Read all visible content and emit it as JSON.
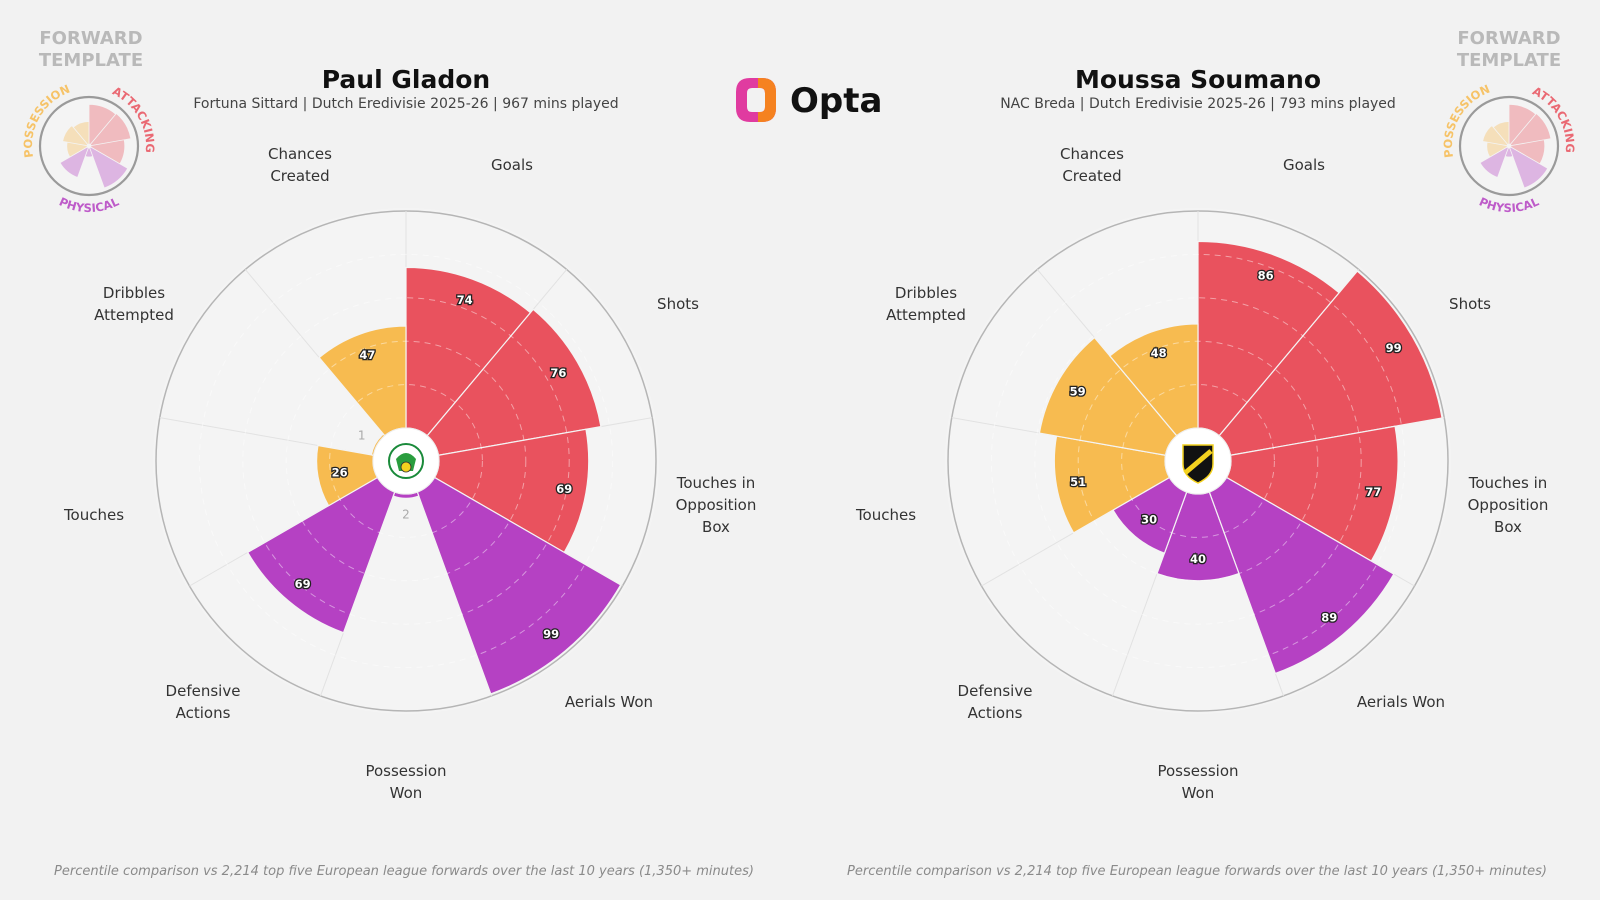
{
  "brand": {
    "name": "Opta"
  },
  "template": {
    "title_line1": "FORWARD",
    "title_line2": "TEMPLATE",
    "categories": [
      {
        "name": "ATTACKING",
        "color": "#e9525e"
      },
      {
        "name": "PHYSICAL",
        "color": "#b541c3"
      },
      {
        "name": "POSSESSION",
        "color": "#f7bb50"
      }
    ]
  },
  "colors": {
    "attacking": "#e9525e",
    "physical": "#b541c3",
    "possession": "#f7bb50"
  },
  "footnote": "Percentile comparison vs 2,214 top five European league forwards over the last 10 years (1,350+ minutes)",
  "chart_data": [
    {
      "type": "polar-bar",
      "title": "Paul Gladon",
      "subtitle": "Fortuna Sittard | Dutch Eredivisie 2025-26 | 967 mins played",
      "rlim": [
        0,
        100
      ],
      "ring_ticks": [
        20,
        40,
        60,
        80,
        100
      ],
      "categories": [
        "Goals",
        "Shots",
        "Touches in Opposition Box",
        "Aerials Won",
        "Possession Won",
        "Defensive Actions",
        "Touches",
        "Dribbles Attempted",
        "Chances Created"
      ],
      "category_group": [
        "attacking",
        "attacking",
        "attacking",
        "physical",
        "physical",
        "physical",
        "possession",
        "possession",
        "possession"
      ],
      "values": [
        74,
        76,
        69,
        99,
        2,
        69,
        26,
        1,
        47
      ],
      "value_labels": [
        "74",
        "76",
        "69",
        "99",
        "2",
        "69",
        "26",
        "1",
        "47"
      ]
    },
    {
      "type": "polar-bar",
      "title": "Moussa Soumano",
      "subtitle": "NAC Breda | Dutch Eredivisie 2025-26 | 793 mins played",
      "rlim": [
        0,
        100
      ],
      "ring_ticks": [
        20,
        40,
        60,
        80,
        100
      ],
      "categories": [
        "Goals",
        "Shots",
        "Touches in Opposition Box",
        "Aerials Won",
        "Possession Won",
        "Defensive Actions",
        "Touches",
        "Dribbles Attempted",
        "Chances Created"
      ],
      "category_group": [
        "attacking",
        "attacking",
        "attacking",
        "physical",
        "physical",
        "physical",
        "possession",
        "possession",
        "possession"
      ],
      "values": [
        86,
        99,
        77,
        89,
        40,
        30,
        51,
        59,
        48
      ],
      "value_labels": [
        "86",
        "99",
        "77",
        "89",
        "40",
        "30",
        "51",
        "59",
        "48"
      ]
    }
  ]
}
